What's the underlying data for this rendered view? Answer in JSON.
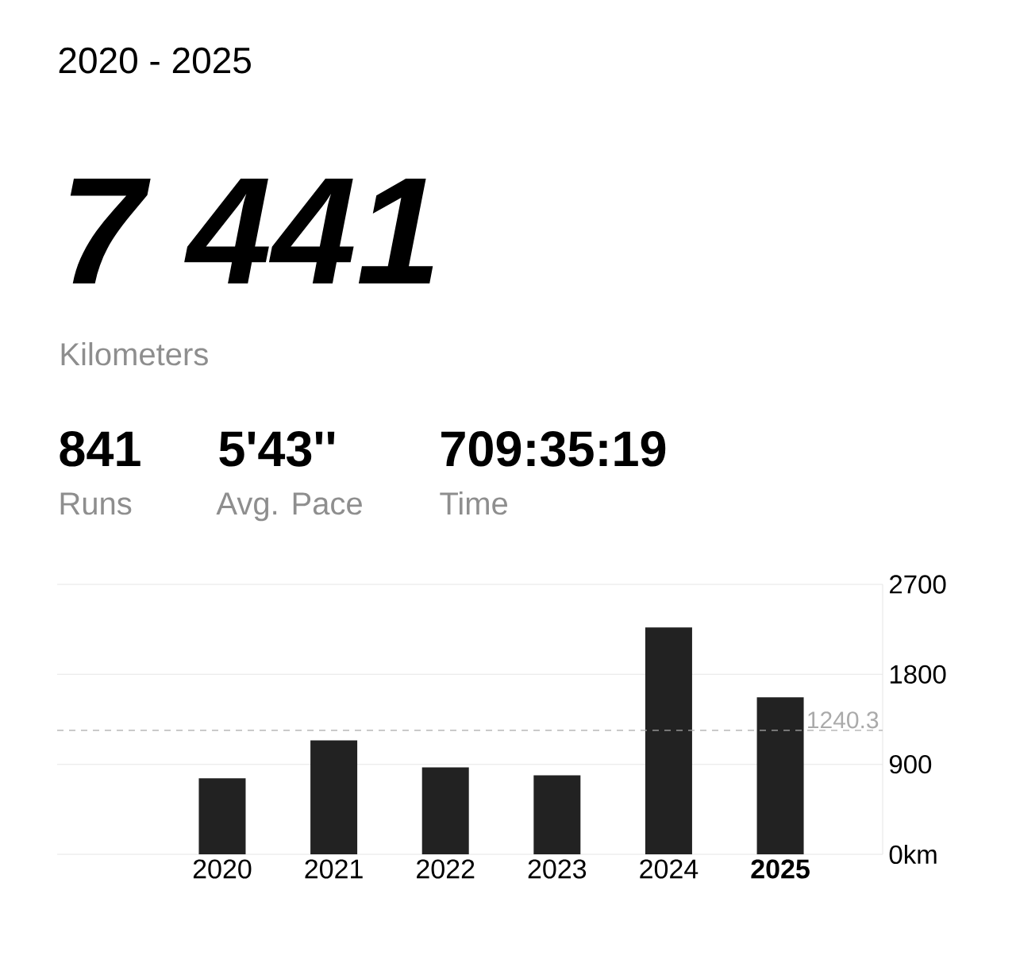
{
  "chart_data": {
    "type": "bar",
    "title": "2020 - 2025",
    "annotations": [
      "7 441",
      "Kilometers",
      "841",
      "Runs",
      "5'43''",
      "Avg. Pace",
      "709:35:19",
      "Time"
    ],
    "categories": [
      "2020",
      "2021",
      "2022",
      "2023",
      "2024",
      "2025"
    ],
    "values": [
      760,
      1140,
      870,
      790,
      2270,
      1570
    ],
    "color": "#222222",
    "ylim": [
      0,
      2700
    ],
    "yticks": [
      {
        "value": 0,
        "label": "0km"
      },
      900,
      1800,
      2700
    ],
    "grid": "y",
    "ref_lines": [
      {
        "axis": "y",
        "value": 1240.3,
        "label": "1240.3",
        "color": "#aaaaaa",
        "line_style": "dashed"
      }
    ]
  }
}
